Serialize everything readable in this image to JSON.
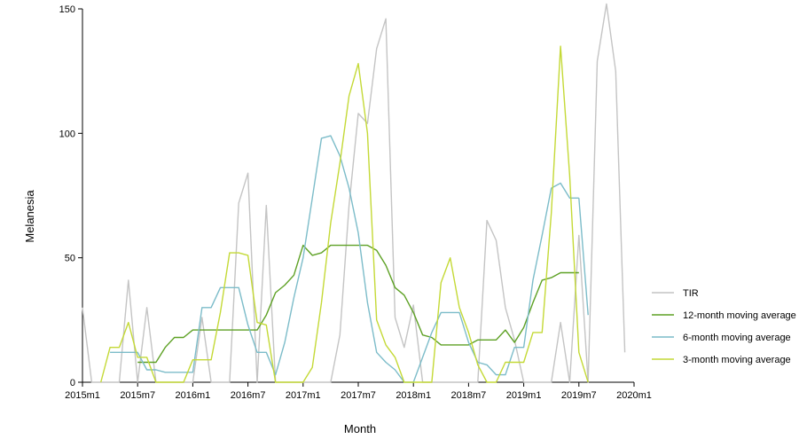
{
  "chart_data": {
    "type": "line",
    "title": "",
    "xlabel": "Month",
    "ylabel": "Melanesia",
    "xlim": [
      0,
      60
    ],
    "ylim": [
      0,
      150
    ],
    "x_ticks": [
      {
        "value": 0,
        "label": "2015m1"
      },
      {
        "value": 6,
        "label": "2015m7"
      },
      {
        "value": 12,
        "label": "2016m1"
      },
      {
        "value": 18,
        "label": "2016m7"
      },
      {
        "value": 24,
        "label": "2017m1"
      },
      {
        "value": 30,
        "label": "2017m7"
      },
      {
        "value": 36,
        "label": "2018m1"
      },
      {
        "value": 42,
        "label": "2018m7"
      },
      {
        "value": 48,
        "label": "2019m1"
      },
      {
        "value": 54,
        "label": "2019m7"
      },
      {
        "value": 60,
        "label": "2020m1"
      }
    ],
    "y_ticks": [
      0,
      50,
      100,
      150
    ],
    "grid": false,
    "legend_position": "right",
    "series": [
      {
        "name": "TIR",
        "color": "#c4c4c4",
        "x": [
          0,
          1,
          2,
          3,
          4,
          5,
          6,
          7,
          8,
          9,
          10,
          11,
          12,
          13,
          14,
          15,
          16,
          17,
          18,
          19,
          20,
          21,
          22,
          23,
          24,
          25,
          26,
          27,
          28,
          29,
          30,
          31,
          32,
          33,
          34,
          35,
          36,
          37,
          38,
          39,
          40,
          41,
          42,
          43,
          44,
          45,
          46,
          47,
          48,
          49,
          50,
          51,
          52,
          53,
          54,
          55,
          56,
          57,
          58,
          59
        ],
        "values": [
          30,
          0,
          0,
          0,
          0,
          41,
          0,
          30,
          0,
          0,
          0,
          0,
          0,
          26,
          0,
          0,
          0,
          72,
          84,
          0,
          71,
          0,
          0,
          0,
          0,
          0,
          0,
          0,
          19,
          71,
          108,
          104,
          134,
          146,
          26,
          14,
          31,
          0,
          0,
          0,
          0,
          0,
          0,
          0,
          65,
          57,
          30,
          17,
          0,
          0,
          0,
          0,
          24,
          0,
          59,
          0,
          129,
          152,
          125,
          12
        ]
      },
      {
        "name": "12-month moving average",
        "color": "#5ea125",
        "x": [
          6,
          7,
          8,
          9,
          10,
          11,
          12,
          13,
          14,
          15,
          16,
          17,
          18,
          19,
          20,
          21,
          22,
          23,
          24,
          25,
          26,
          27,
          28,
          29,
          30,
          31,
          32,
          33,
          34,
          35,
          36,
          37,
          38,
          39,
          40,
          41,
          42,
          43,
          44,
          45,
          46,
          47,
          48,
          49,
          50,
          51,
          52,
          53,
          54
        ],
        "values": [
          8,
          8,
          8,
          14,
          18,
          18,
          21,
          21,
          21,
          21,
          21,
          21,
          21,
          21,
          27,
          36,
          39,
          43,
          55,
          51,
          52,
          55,
          55,
          55,
          55,
          55,
          53,
          47,
          38,
          35,
          28,
          19,
          18,
          15,
          15,
          15,
          15,
          17,
          17,
          17,
          21,
          16,
          22,
          32,
          41,
          42,
          44,
          44,
          44
        ]
      },
      {
        "name": "6-month moving average",
        "color": "#7cbcc9",
        "x": [
          3,
          4,
          5,
          6,
          7,
          8,
          9,
          10,
          11,
          12,
          13,
          14,
          15,
          16,
          17,
          18,
          19,
          20,
          21,
          22,
          23,
          24,
          25,
          26,
          27,
          28,
          29,
          30,
          31,
          32,
          33,
          34,
          35,
          36,
          37,
          38,
          39,
          40,
          41,
          42,
          43,
          44,
          45,
          46,
          47,
          48,
          49,
          50,
          51,
          52,
          53,
          54
        ],
        "values": [
          12,
          12,
          12,
          12,
          5,
          5,
          4,
          4,
          4,
          4,
          30,
          30,
          38,
          38,
          38,
          23,
          12,
          12,
          3,
          16,
          34,
          50,
          74,
          98,
          99,
          91,
          78,
          60,
          32,
          12,
          8,
          5,
          0,
          0,
          10,
          20,
          28,
          28,
          28,
          16,
          8,
          7,
          3,
          3,
          14,
          14,
          41,
          59,
          78,
          80,
          74,
          74
        ],
        "x_tail": [
          55
        ],
        "values_tail": [
          27
        ]
      },
      {
        "name": "3-month moving average",
        "color": "#c4d936",
        "x": [
          2,
          3,
          4,
          5,
          6,
          7,
          8,
          9,
          10,
          11,
          12,
          13,
          14,
          15,
          16,
          17,
          18,
          19,
          20,
          21,
          22,
          23,
          24,
          25,
          26,
          27,
          28,
          29,
          30,
          31,
          32,
          33,
          34,
          35,
          36,
          37,
          38,
          39,
          40,
          41,
          42,
          43,
          44,
          45,
          46,
          47,
          48,
          49,
          50,
          51,
          52,
          53,
          54,
          55
        ],
        "values": [
          0,
          14,
          14,
          24,
          10,
          10,
          0,
          0,
          0,
          0,
          9,
          9,
          9,
          28,
          52,
          52,
          51,
          24,
          23,
          0,
          0,
          0,
          0,
          6,
          32,
          64,
          88,
          115,
          128,
          100,
          25,
          15,
          10,
          0,
          0,
          0,
          0,
          40,
          50,
          30,
          20,
          7,
          0,
          0,
          8,
          8,
          8,
          20,
          20,
          68,
          135,
          83,
          12,
          0
        ]
      }
    ]
  }
}
